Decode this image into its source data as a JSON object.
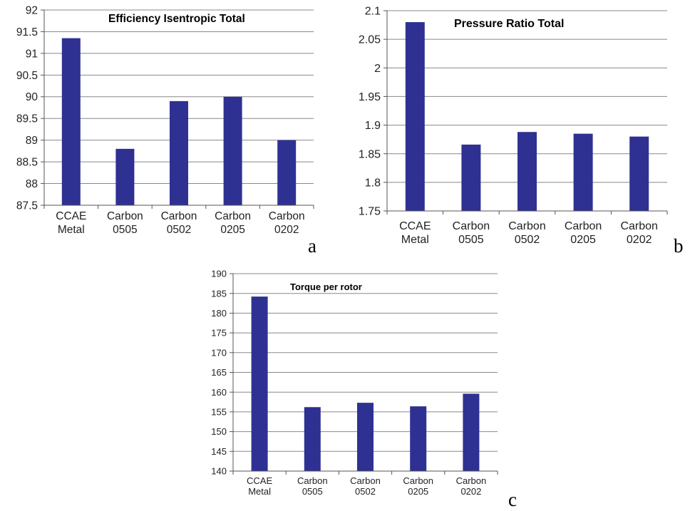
{
  "colors": {
    "bar": "#2e3192",
    "grid": "#888888",
    "axis": "#555555"
  },
  "panel_letters": {
    "a": "a",
    "b": "b",
    "c": "c"
  },
  "chart_data": [
    {
      "type": "bar",
      "title": "Efficiency Isentropic Total",
      "categories": [
        [
          "CCAE",
          "Metal"
        ],
        [
          "Carbon",
          "0505"
        ],
        [
          "Carbon",
          "0502"
        ],
        [
          "Carbon",
          "0205"
        ],
        [
          "Carbon",
          "0202"
        ]
      ],
      "values": [
        91.35,
        88.8,
        89.9,
        90.0,
        89.0
      ],
      "ylim": [
        87.5,
        92
      ],
      "ytick_step": 0.5,
      "yticks": [
        "87.5",
        "88",
        "88.5",
        "89",
        "89.5",
        "90",
        "90.5",
        "91",
        "91.5",
        "92"
      ],
      "xlabel": "",
      "ylabel": "",
      "grid": true
    },
    {
      "type": "bar",
      "title": "Pressure Ratio Total",
      "categories": [
        [
          "CCAE",
          "Metal"
        ],
        [
          "Carbon",
          "0505"
        ],
        [
          "Carbon",
          "0502"
        ],
        [
          "Carbon",
          "0205"
        ],
        [
          "Carbon",
          "0202"
        ]
      ],
      "values": [
        2.08,
        1.866,
        1.888,
        1.885,
        1.88
      ],
      "ylim": [
        1.75,
        2.1
      ],
      "ytick_step": 0.05,
      "yticks": [
        "1.75",
        "1.8",
        "1.85",
        "1.9",
        "1.95",
        "2",
        "2.05",
        "2.1"
      ],
      "xlabel": "",
      "ylabel": "",
      "grid": true
    },
    {
      "type": "bar",
      "title": "Torque per rotor",
      "categories": [
        [
          "CCAE",
          "Metal"
        ],
        [
          "Carbon",
          "0505"
        ],
        [
          "Carbon",
          "0502"
        ],
        [
          "Carbon",
          "0205"
        ],
        [
          "Carbon",
          "0202"
        ]
      ],
      "values": [
        184.2,
        156.2,
        157.3,
        156.4,
        159.6
      ],
      "ylim": [
        140,
        190
      ],
      "ytick_step": 5,
      "yticks": [
        "140",
        "145",
        "150",
        "155",
        "160",
        "165",
        "170",
        "175",
        "180",
        "185",
        "190"
      ],
      "xlabel": "",
      "ylabel": "",
      "grid": true
    }
  ]
}
